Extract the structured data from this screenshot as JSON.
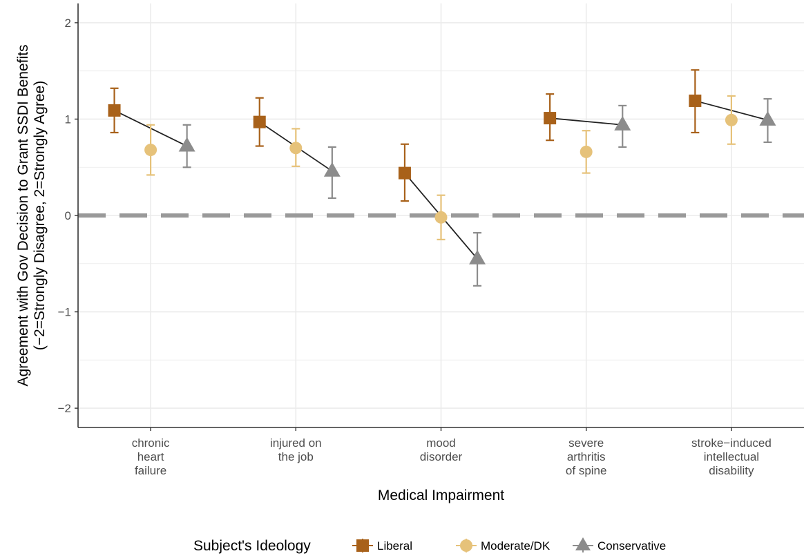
{
  "chart_data": {
    "type": "scatter",
    "xlabel": "Medical Impairment",
    "ylabel_lines": [
      "Agreement with Gov Decision to Grant SSDI Benefits",
      "(−2=Strongly Disagree, 2=Strongly Agree)"
    ],
    "ylim": [
      -2.2,
      2.2
    ],
    "y_ticks": [
      2,
      1,
      0,
      -1,
      -2
    ],
    "y_tick_labels": [
      "2",
      "1",
      "0",
      "−1",
      "−2"
    ],
    "reference_line": 0,
    "grid": true,
    "categories": [
      [
        "chronic",
        "heart",
        "failure"
      ],
      [
        "injured on",
        "the job"
      ],
      [
        "mood",
        "disorder"
      ],
      [
        "severe",
        "arthritis",
        "of spine"
      ],
      [
        "stroke−induced",
        "intellectual",
        "disability"
      ]
    ],
    "legend": {
      "title": "Subject's Ideology",
      "position": "bottom"
    },
    "series": [
      {
        "name": "Liberal",
        "marker": "square",
        "color": "#a8611a",
        "offset": -0.25,
        "values": [
          1.09,
          0.97,
          0.44,
          1.01,
          1.19
        ],
        "lower": [
          0.86,
          0.72,
          0.15,
          0.78,
          0.86
        ],
        "upper": [
          1.32,
          1.22,
          0.74,
          1.26,
          1.51
        ]
      },
      {
        "name": "Moderate/DK",
        "marker": "circle",
        "color": "#e6c27a",
        "offset": 0,
        "values": [
          0.68,
          0.7,
          -0.02,
          0.66,
          0.99
        ],
        "lower": [
          0.42,
          0.51,
          -0.25,
          0.44,
          0.74
        ],
        "upper": [
          0.94,
          0.9,
          0.21,
          0.88,
          1.24
        ]
      },
      {
        "name": "Conservative",
        "marker": "triangle",
        "color": "#8c8c8c",
        "offset": 0.25,
        "values": [
          0.72,
          0.46,
          -0.45,
          0.94,
          0.99
        ],
        "lower": [
          0.5,
          0.18,
          -0.73,
          0.71,
          0.76
        ],
        "upper": [
          0.94,
          0.71,
          -0.18,
          1.14,
          1.21
        ]
      }
    ]
  }
}
